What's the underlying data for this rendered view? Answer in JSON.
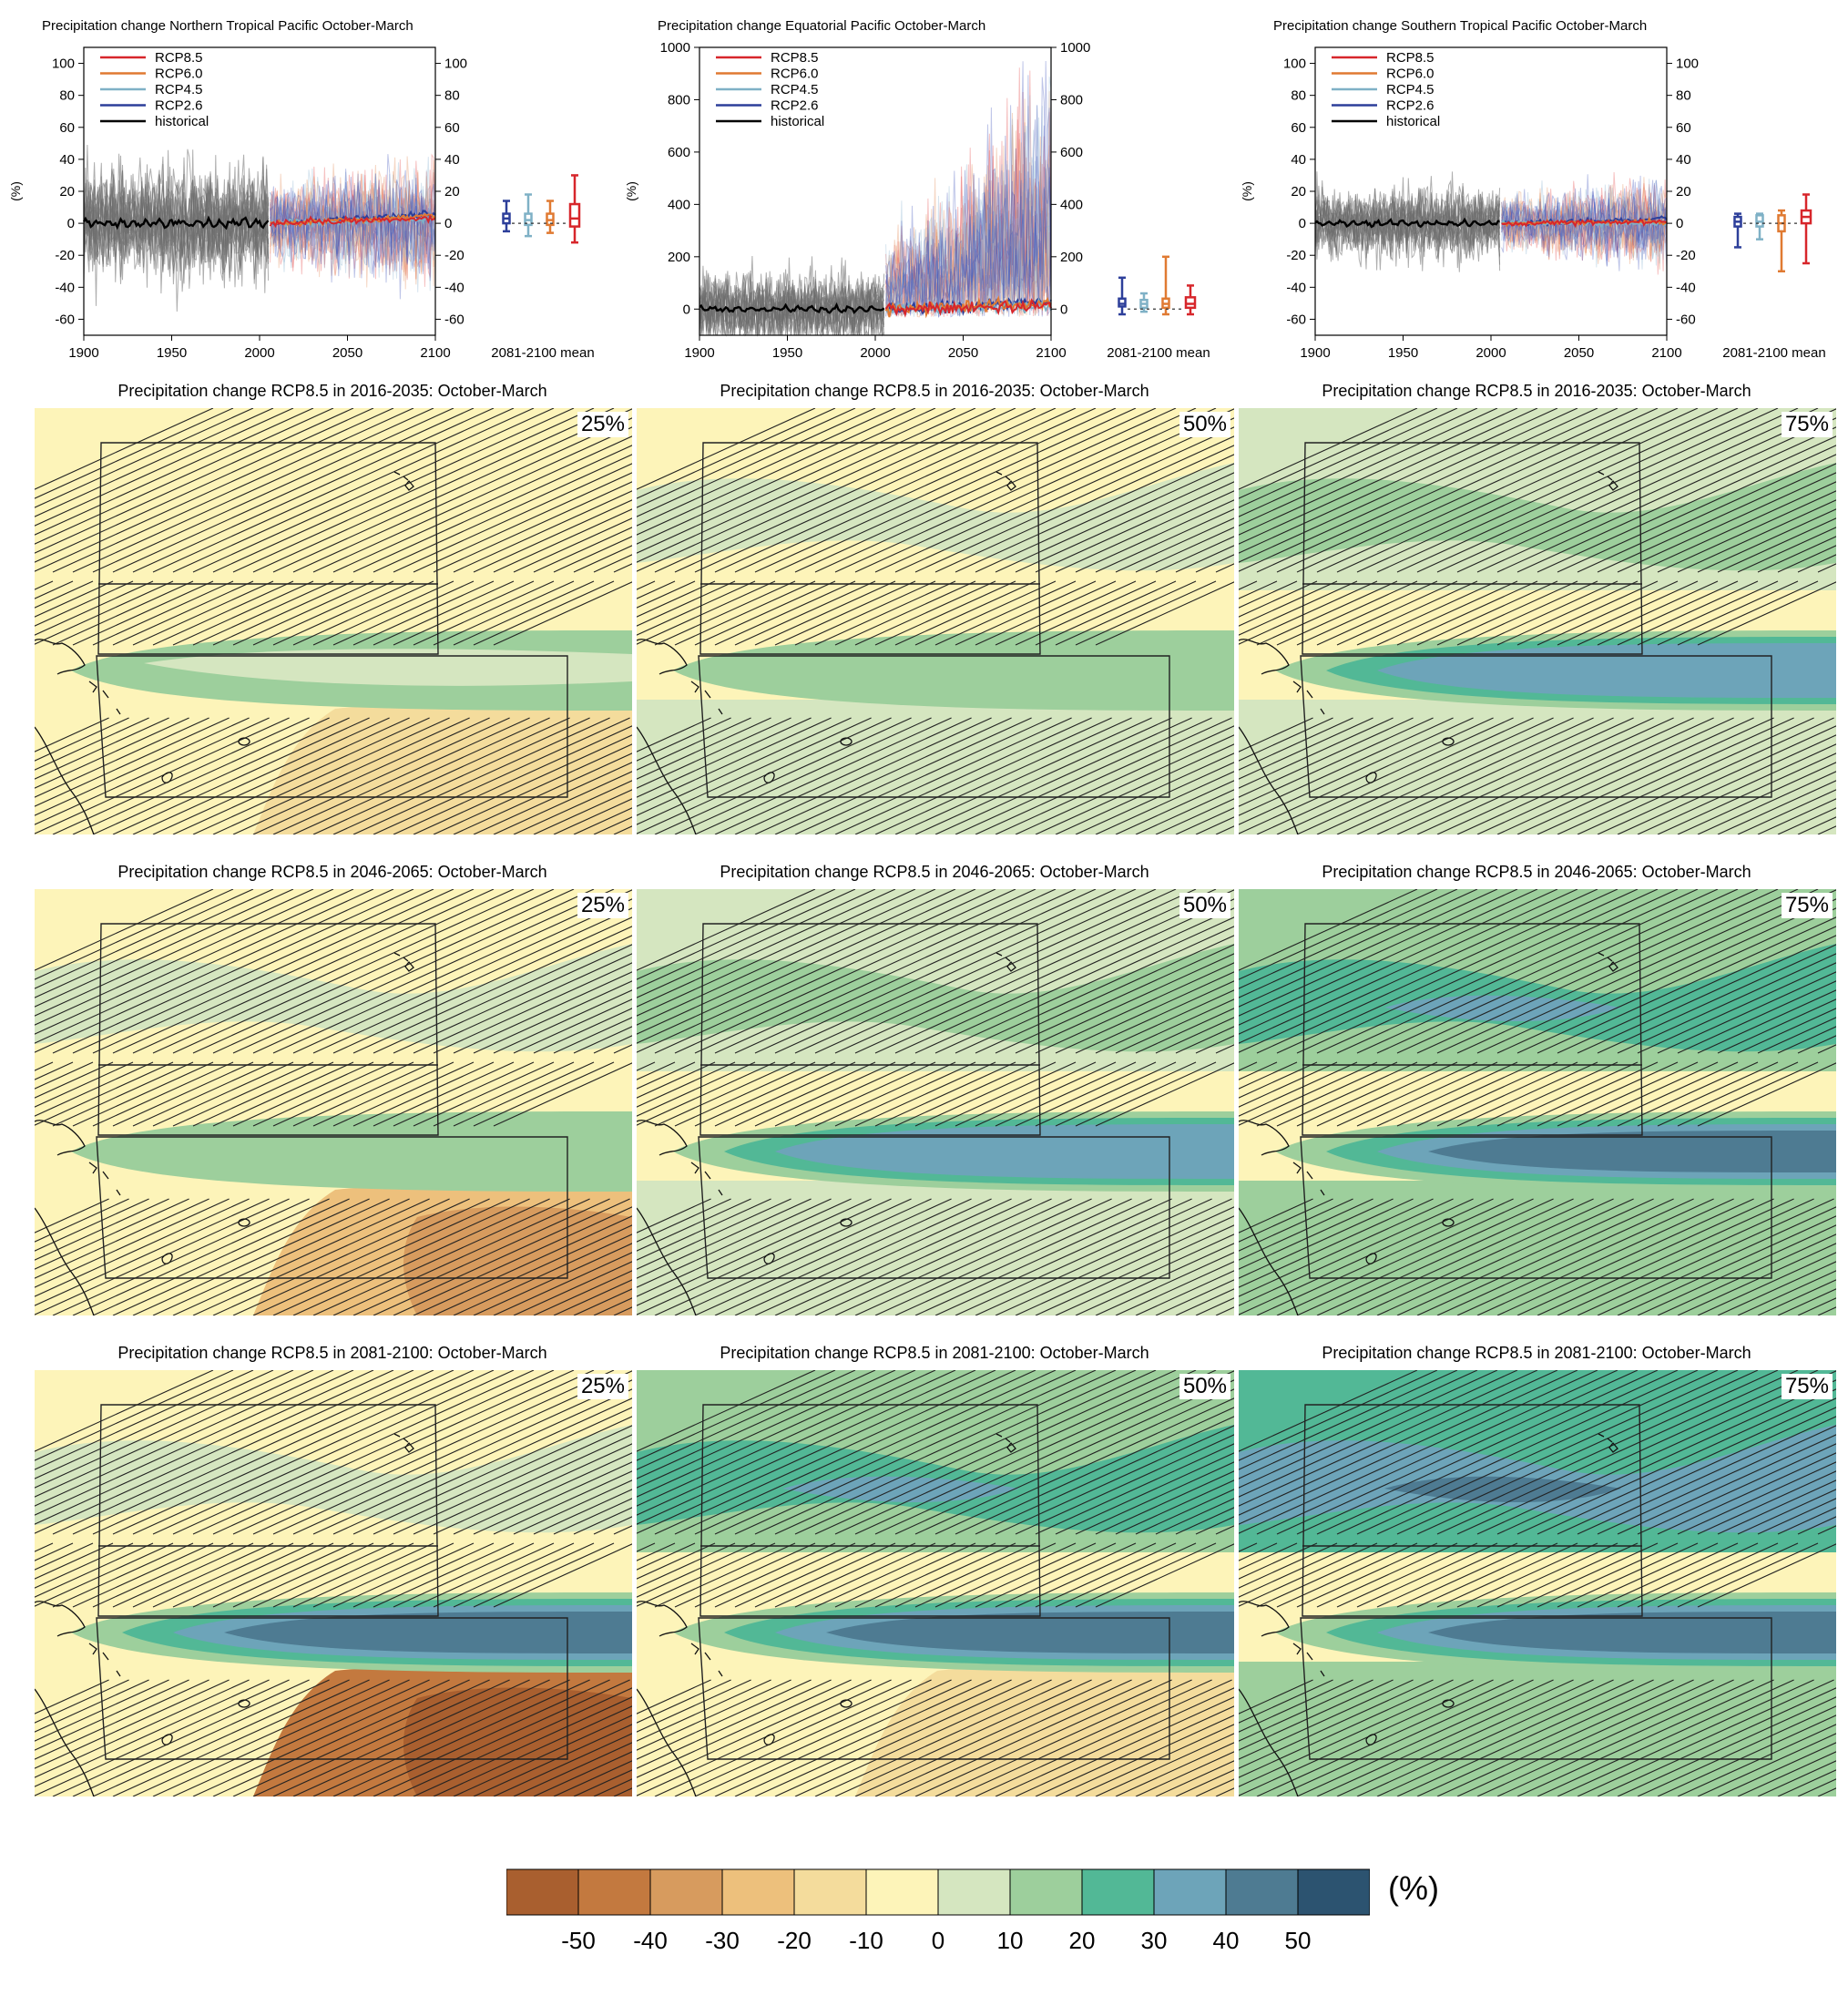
{
  "colorbar": {
    "colors": [
      "#a95f2f",
      "#c3793f",
      "#d79b5e",
      "#edc07c",
      "#f4dc9c",
      "#fdf4b9",
      "#d5e6c0",
      "#9dcf9c",
      "#52b896",
      "#6da4b9",
      "#4e7b92",
      "#2c5370"
    ],
    "ticks": [
      "-50",
      "-40",
      "-30",
      "-20",
      "-10",
      "0",
      "10",
      "20",
      "30",
      "40",
      "50"
    ],
    "unit": "(%)"
  },
  "timeseries": [
    {
      "title": "Precipitation change Northern Tropical Pacific October-March",
      "ylabel": "(%)",
      "ylim": [
        -70,
        110
      ],
      "yticks": [
        "-60",
        "-40",
        "-20",
        "0",
        "20",
        "40",
        "60",
        "80",
        "100"
      ],
      "xticks": [
        "1900",
        "1950",
        "2000",
        "2050",
        "2100"
      ],
      "boxlabel": "2081-2100 mean",
      "legend": [
        "RCP8.5",
        "RCP6.0",
        "RCP4.5",
        "RCP2.6",
        "historical"
      ],
      "spread_hist": 28,
      "spread_rcp": 35,
      "rcp_mean_end": [
        3,
        4,
        3,
        6
      ],
      "boxes": [
        [
          -5,
          0,
          3,
          6,
          14
        ],
        [
          -8,
          -1,
          2,
          6,
          18
        ],
        [
          -6,
          -1,
          2,
          6,
          14
        ],
        [
          -12,
          -2,
          3,
          12,
          30
        ]
      ]
    },
    {
      "title": "Precipitation change Equatorial Pacific October-March",
      "ylabel": "(%)",
      "ylim": [
        -100,
        1000
      ],
      "yticks": [
        "0",
        "200",
        "400",
        "600",
        "800",
        "1000"
      ],
      "xticks": [
        "1900",
        "1950",
        "2000",
        "2050",
        "2100"
      ],
      "boxlabel": "2081-2100 mean",
      "legend": [
        "RCP8.5",
        "RCP6.0",
        "RCP4.5",
        "RCP2.6",
        "historical"
      ],
      "spread_hist": 120,
      "spread_rcp": 400,
      "rcp_mean_end": [
        10,
        20,
        15,
        25
      ],
      "boxes": [
        [
          -20,
          10,
          20,
          40,
          120
        ],
        [
          -10,
          5,
          20,
          35,
          60
        ],
        [
          -20,
          5,
          20,
          40,
          200
        ],
        [
          -20,
          5,
          20,
          45,
          90
        ]
      ]
    },
    {
      "title": "Precipitation change Southern Tropical Pacific October-March",
      "ylabel": "(%)",
      "ylim": [
        -70,
        110
      ],
      "yticks": [
        "-60",
        "-40",
        "-20",
        "0",
        "20",
        "40",
        "60",
        "80",
        "100"
      ],
      "xticks": [
        "1900",
        "1950",
        "2000",
        "2050",
        "2100"
      ],
      "boxlabel": "2081-2100 mean",
      "legend": [
        "RCP8.5",
        "RCP6.0",
        "RCP4.5",
        "RCP2.6",
        "historical"
      ],
      "spread_hist": 18,
      "spread_rcp": 25,
      "rcp_mean_end": [
        1,
        1,
        0,
        3
      ],
      "boxes": [
        [
          -15,
          -2,
          1,
          4,
          6
        ],
        [
          -10,
          -2,
          1,
          5,
          6
        ],
        [
          -30,
          -5,
          0,
          5,
          8
        ],
        [
          -25,
          0,
          4,
          8,
          18
        ]
      ]
    }
  ],
  "maps": [
    {
      "title": "Precipitation change RCP8.5 in 2016-2035: October-March",
      "pct": "25%",
      "band": 0,
      "north": -1,
      "south": -1
    },
    {
      "title": "Precipitation change RCP8.5 in 2016-2035: October-March",
      "pct": "50%",
      "band": 1,
      "north": 0,
      "south": 0
    },
    {
      "title": "Precipitation change RCP8.5 in 2016-2035: October-March",
      "pct": "75%",
      "band": 3,
      "north": 1,
      "south": 0
    },
    {
      "title": "Precipitation change RCP8.5 in 2046-2065: October-March",
      "pct": "25%",
      "band": 1,
      "north": 0,
      "south": -2
    },
    {
      "title": "Precipitation change RCP8.5 in 2046-2065: October-March",
      "pct": "50%",
      "band": 3,
      "north": 1,
      "south": 0
    },
    {
      "title": "Precipitation change RCP8.5 in 2046-2065: October-March",
      "pct": "75%",
      "band": 4,
      "north": 2,
      "south": 1
    },
    {
      "title": "Precipitation change RCP8.5 in 2081-2100: October-March",
      "pct": "25%",
      "band": 4,
      "north": 0,
      "south": -4
    },
    {
      "title": "Precipitation change RCP8.5 in 2081-2100: October-March",
      "pct": "50%",
      "band": 4,
      "north": 2,
      "south": -1
    },
    {
      "title": "Precipitation change RCP8.5 in 2081-2100: October-March",
      "pct": "75%",
      "band": 4,
      "north": 3,
      "south": 1
    }
  ]
}
